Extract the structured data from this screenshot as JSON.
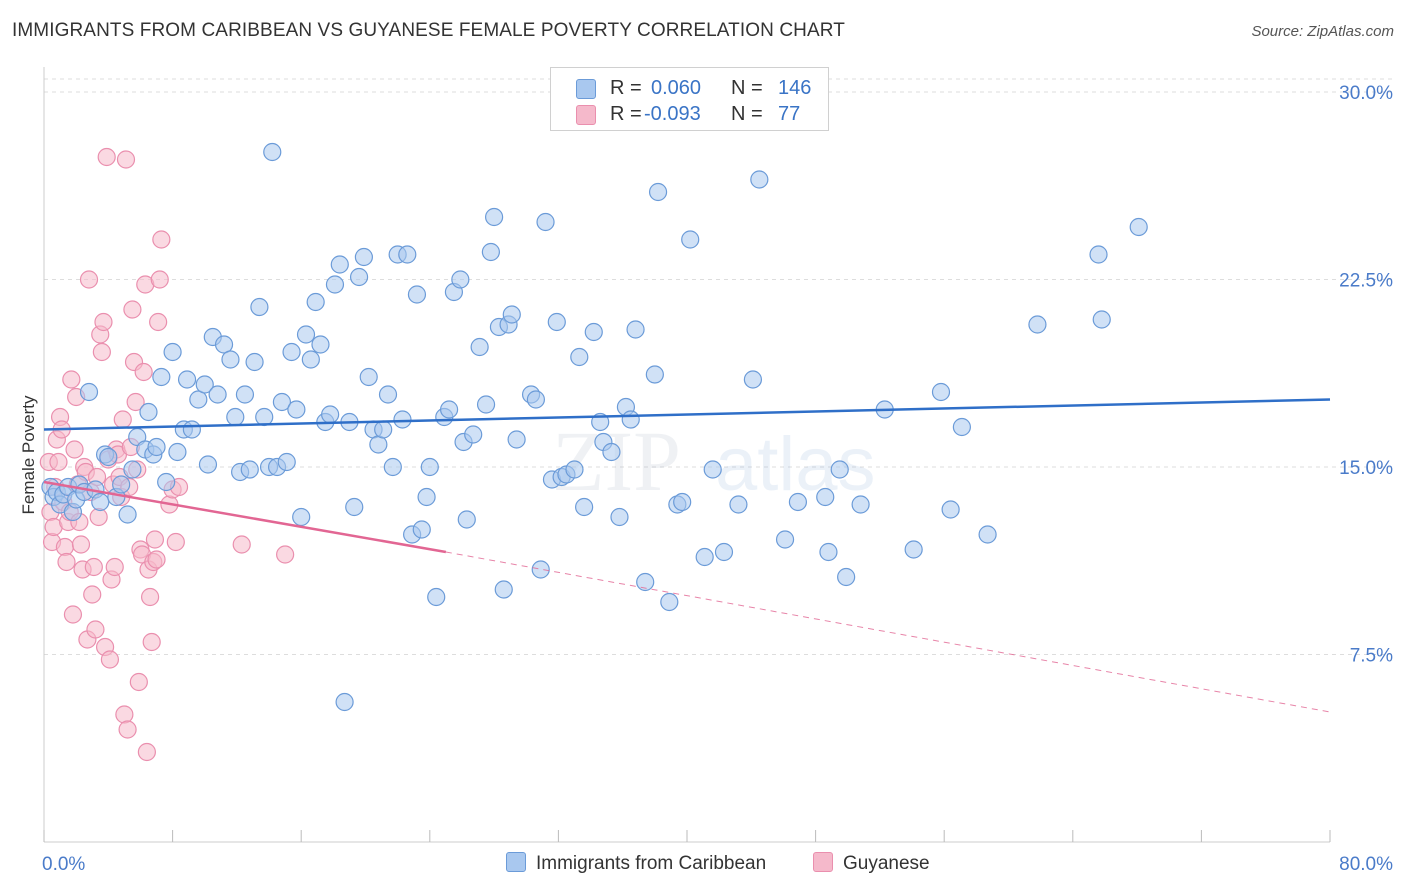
{
  "title": "IMMIGRANTS FROM CARIBBEAN VS GUYANESE FEMALE POVERTY CORRELATION CHART",
  "source": "Source: ZipAtlas.com",
  "watermark": {
    "zip": "ZIP",
    "atlas": "atlas"
  },
  "legend": {
    "rows": [
      {
        "r_label": "R =",
        "r_value": "0.060",
        "n_label": "N =",
        "n_value": "146"
      },
      {
        "r_label": "R =",
        "r_value": "-0.093",
        "n_label": "N =",
        "n_value": "77"
      }
    ]
  },
  "colors": {
    "blue_fill": "#a9c8ef",
    "blue_stroke": "#6b9bd8",
    "blue_line": "#2f6fc8",
    "pink_fill": "#f5b9cb",
    "pink_stroke": "#ea8fae",
    "pink_line": "#e26693",
    "grid": "#dddddd",
    "axis_text": "#4a7bc9"
  },
  "chart_data": {
    "type": "scatter",
    "title": "IMMIGRANTS FROM CARIBBEAN VS GUYANESE FEMALE POVERTY CORRELATION CHART",
    "xlabel": "",
    "ylabel": "Female Poverty",
    "xlim": [
      0,
      80
    ],
    "ylim": [
      0,
      31
    ],
    "x_tick_labels": [
      "0.0%",
      "80.0%"
    ],
    "y_ticks": [
      {
        "value": 7.5,
        "label": "7.5%"
      },
      {
        "value": 15,
        "label": "15.0%"
      },
      {
        "value": 22.5,
        "label": "22.5%"
      },
      {
        "value": 30,
        "label": "30.0%"
      }
    ],
    "grid": true,
    "legend_position": "top-center",
    "series": [
      {
        "name": "Immigrants from Caribbean",
        "color": "#a9c8ef",
        "r": 0.06,
        "n": 146,
        "trend": {
          "x": [
            0,
            80
          ],
          "y": [
            16.5,
            17.7
          ]
        },
        "points": [
          [
            0.4,
            14.2
          ],
          [
            0.6,
            13.8
          ],
          [
            0.8,
            14.0
          ],
          [
            1.0,
            13.5
          ],
          [
            1.2,
            13.9
          ],
          [
            1.5,
            14.2
          ],
          [
            1.8,
            13.2
          ],
          [
            2.0,
            13.7
          ],
          [
            2.2,
            14.3
          ],
          [
            2.5,
            14.0
          ],
          [
            2.8,
            18.0
          ],
          [
            3.2,
            14.1
          ],
          [
            3.5,
            13.6
          ],
          [
            3.8,
            15.5
          ],
          [
            4.0,
            15.4
          ],
          [
            4.5,
            13.8
          ],
          [
            4.8,
            14.3
          ],
          [
            5.2,
            13.1
          ],
          [
            5.5,
            14.9
          ],
          [
            5.8,
            16.2
          ],
          [
            6.3,
            15.7
          ],
          [
            6.5,
            17.2
          ],
          [
            6.8,
            15.5
          ],
          [
            7.0,
            15.8
          ],
          [
            7.3,
            18.6
          ],
          [
            7.6,
            14.4
          ],
          [
            8.0,
            19.6
          ],
          [
            8.3,
            15.6
          ],
          [
            8.7,
            16.5
          ],
          [
            8.9,
            18.5
          ],
          [
            9.2,
            16.5
          ],
          [
            9.6,
            17.7
          ],
          [
            10.0,
            18.3
          ],
          [
            10.2,
            15.1
          ],
          [
            10.5,
            20.2
          ],
          [
            10.8,
            17.9
          ],
          [
            11.2,
            19.9
          ],
          [
            11.6,
            19.3
          ],
          [
            11.9,
            17.0
          ],
          [
            12.2,
            14.8
          ],
          [
            12.5,
            17.9
          ],
          [
            12.8,
            14.9
          ],
          [
            13.1,
            19.2
          ],
          [
            13.4,
            21.4
          ],
          [
            13.7,
            17.0
          ],
          [
            14.0,
            15.0
          ],
          [
            14.2,
            27.6
          ],
          [
            14.5,
            15.0
          ],
          [
            14.8,
            17.6
          ],
          [
            15.1,
            15.2
          ],
          [
            15.4,
            19.6
          ],
          [
            15.7,
            17.3
          ],
          [
            16.0,
            13.0
          ],
          [
            16.3,
            20.3
          ],
          [
            16.6,
            19.3
          ],
          [
            16.9,
            21.6
          ],
          [
            17.2,
            19.9
          ],
          [
            17.5,
            16.8
          ],
          [
            17.8,
            17.1
          ],
          [
            18.1,
            22.3
          ],
          [
            18.4,
            23.1
          ],
          [
            18.7,
            5.6
          ],
          [
            19.0,
            16.8
          ],
          [
            19.3,
            13.4
          ],
          [
            19.6,
            22.6
          ],
          [
            19.9,
            23.4
          ],
          [
            20.2,
            18.6
          ],
          [
            20.5,
            16.5
          ],
          [
            20.8,
            15.9
          ],
          [
            21.1,
            16.5
          ],
          [
            21.4,
            17.9
          ],
          [
            21.7,
            15.0
          ],
          [
            22.0,
            23.5
          ],
          [
            22.3,
            16.9
          ],
          [
            22.6,
            23.5
          ],
          [
            22.9,
            12.3
          ],
          [
            23.2,
            21.9
          ],
          [
            23.5,
            12.5
          ],
          [
            23.8,
            13.8
          ],
          [
            24.0,
            15.0
          ],
          [
            24.4,
            9.8
          ],
          [
            24.9,
            17.0
          ],
          [
            25.2,
            17.3
          ],
          [
            25.5,
            22.0
          ],
          [
            25.9,
            22.5
          ],
          [
            26.1,
            16.0
          ],
          [
            26.3,
            12.9
          ],
          [
            26.7,
            16.3
          ],
          [
            27.1,
            19.8
          ],
          [
            27.5,
            17.5
          ],
          [
            27.8,
            23.6
          ],
          [
            28.0,
            25.0
          ],
          [
            28.3,
            20.6
          ],
          [
            28.6,
            10.1
          ],
          [
            28.9,
            20.7
          ],
          [
            29.1,
            21.1
          ],
          [
            29.4,
            16.1
          ],
          [
            30.3,
            17.9
          ],
          [
            30.6,
            17.7
          ],
          [
            30.9,
            10.9
          ],
          [
            31.2,
            24.8
          ],
          [
            31.6,
            14.5
          ],
          [
            31.9,
            20.8
          ],
          [
            32.2,
            14.6
          ],
          [
            32.5,
            14.7
          ],
          [
            33.0,
            14.9
          ],
          [
            33.3,
            19.4
          ],
          [
            33.6,
            13.4
          ],
          [
            34.2,
            20.4
          ],
          [
            34.6,
            16.8
          ],
          [
            34.8,
            16.0
          ],
          [
            35.3,
            15.6
          ],
          [
            35.8,
            13.0
          ],
          [
            36.2,
            17.4
          ],
          [
            36.5,
            16.9
          ],
          [
            36.8,
            20.5
          ],
          [
            37.4,
            10.4
          ],
          [
            38.0,
            18.7
          ],
          [
            38.2,
            26.0
          ],
          [
            38.9,
            9.6
          ],
          [
            39.4,
            13.5
          ],
          [
            39.7,
            13.6
          ],
          [
            40.2,
            24.1
          ],
          [
            41.1,
            11.4
          ],
          [
            41.6,
            14.9
          ],
          [
            42.3,
            11.6
          ],
          [
            43.2,
            13.5
          ],
          [
            44.1,
            18.5
          ],
          [
            44.5,
            26.5
          ],
          [
            46.1,
            12.1
          ],
          [
            46.9,
            13.6
          ],
          [
            48.6,
            13.8
          ],
          [
            48.8,
            11.6
          ],
          [
            49.5,
            14.9
          ],
          [
            49.9,
            10.6
          ],
          [
            50.8,
            13.5
          ],
          [
            52.3,
            17.3
          ],
          [
            54.1,
            11.7
          ],
          [
            55.8,
            18.0
          ],
          [
            56.4,
            13.3
          ],
          [
            57.1,
            16.6
          ],
          [
            58.7,
            12.3
          ],
          [
            61.8,
            20.7
          ],
          [
            65.6,
            23.5
          ],
          [
            65.8,
            20.9
          ],
          [
            68.1,
            24.6
          ]
        ]
      },
      {
        "name": "Guyanese",
        "color": "#f5b9cb",
        "r": -0.093,
        "n": 77,
        "trend": {
          "x": [
            0,
            25
          ],
          "y": [
            14.4,
            11.6
          ]
        },
        "trend_extension": {
          "x": [
            25,
            80
          ],
          "y": [
            11.6,
            5.2
          ]
        },
        "points": [
          [
            0.3,
            15.2
          ],
          [
            0.4,
            13.2
          ],
          [
            0.5,
            12.0
          ],
          [
            0.6,
            12.6
          ],
          [
            0.7,
            14.2
          ],
          [
            0.8,
            16.1
          ],
          [
            0.9,
            15.2
          ],
          [
            1.0,
            17.0
          ],
          [
            1.1,
            16.5
          ],
          [
            1.2,
            13.6
          ],
          [
            1.3,
            11.8
          ],
          [
            1.4,
            11.2
          ],
          [
            1.5,
            12.8
          ],
          [
            1.6,
            13.2
          ],
          [
            1.7,
            18.5
          ],
          [
            1.8,
            9.1
          ],
          [
            1.9,
            15.7
          ],
          [
            2.0,
            17.8
          ],
          [
            2.1,
            14.3
          ],
          [
            2.2,
            12.8
          ],
          [
            2.3,
            11.9
          ],
          [
            2.4,
            10.9
          ],
          [
            2.5,
            15.0
          ],
          [
            2.6,
            14.8
          ],
          [
            2.7,
            8.1
          ],
          [
            2.8,
            22.5
          ],
          [
            2.9,
            14.0
          ],
          [
            3.0,
            9.9
          ],
          [
            3.1,
            11.0
          ],
          [
            3.2,
            8.5
          ],
          [
            3.3,
            14.6
          ],
          [
            3.4,
            13.0
          ],
          [
            3.5,
            20.3
          ],
          [
            3.6,
            19.6
          ],
          [
            3.7,
            20.8
          ],
          [
            3.8,
            7.8
          ],
          [
            3.9,
            27.4
          ],
          [
            4.0,
            15.3
          ],
          [
            4.1,
            7.3
          ],
          [
            4.2,
            10.5
          ],
          [
            4.3,
            14.3
          ],
          [
            4.4,
            11.0
          ],
          [
            4.5,
            15.7
          ],
          [
            4.6,
            15.5
          ],
          [
            4.7,
            14.6
          ],
          [
            4.8,
            13.8
          ],
          [
            4.9,
            16.9
          ],
          [
            5.0,
            5.1
          ],
          [
            5.1,
            27.3
          ],
          [
            5.2,
            4.5
          ],
          [
            5.3,
            14.2
          ],
          [
            5.4,
            15.8
          ],
          [
            5.5,
            21.3
          ],
          [
            5.6,
            19.2
          ],
          [
            5.7,
            17.6
          ],
          [
            5.8,
            14.9
          ],
          [
            5.9,
            6.4
          ],
          [
            6.0,
            11.7
          ],
          [
            6.1,
            11.5
          ],
          [
            6.2,
            18.8
          ],
          [
            6.3,
            22.3
          ],
          [
            6.4,
            3.6
          ],
          [
            6.5,
            10.9
          ],
          [
            6.6,
            9.8
          ],
          [
            6.7,
            8.0
          ],
          [
            6.8,
            11.2
          ],
          [
            6.9,
            12.1
          ],
          [
            7.0,
            11.3
          ],
          [
            7.1,
            20.8
          ],
          [
            7.2,
            22.5
          ],
          [
            7.3,
            24.1
          ],
          [
            7.8,
            13.5
          ],
          [
            8.0,
            14.1
          ],
          [
            8.2,
            12.0
          ],
          [
            8.4,
            14.2
          ],
          [
            12.3,
            11.9
          ],
          [
            15.0,
            11.5
          ]
        ]
      }
    ]
  },
  "bottom_legend": [
    {
      "label": "Immigrants from Caribbean"
    },
    {
      "label": "Guyanese"
    }
  ]
}
